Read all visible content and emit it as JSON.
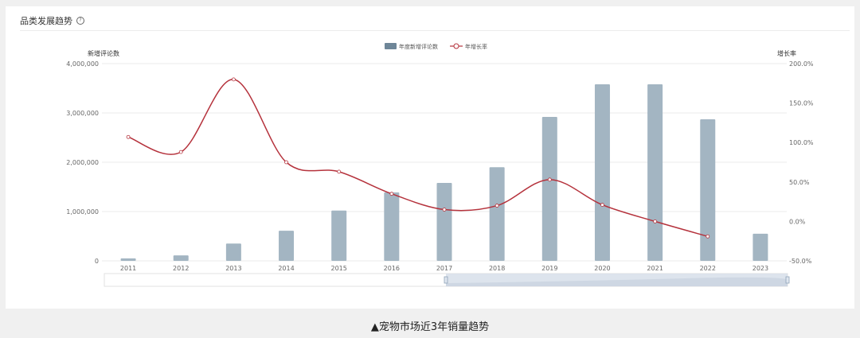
{
  "card": {
    "title": "品类发展趋势",
    "help_icon": "question-circle-icon"
  },
  "caption": "▲宠物市场近3年销量趋势",
  "colors": {
    "bar": "#a3b5c2",
    "line": "#b5323c",
    "grid": "#ebebeb",
    "axis_text": "#666666",
    "datazoom_fill": "#d5dde9"
  },
  "chart_data": {
    "type": "bar",
    "title": "品类发展趋势",
    "categories": [
      "2011",
      "2012",
      "2013",
      "2014",
      "2015",
      "2016",
      "2017",
      "2018",
      "2019",
      "2020",
      "2021",
      "2022",
      "2023"
    ],
    "series": [
      {
        "name": "年度新增评论数",
        "type": "bar",
        "axis": "left",
        "values": [
          50000,
          110000,
          350000,
          610000,
          1020000,
          1390000,
          1580000,
          1900000,
          2920000,
          3580000,
          3580000,
          2870000,
          550000
        ]
      },
      {
        "name": "年增长率",
        "type": "line",
        "axis": "right",
        "unit": "%",
        "values": [
          107,
          88,
          180,
          75,
          63,
          35,
          15,
          20,
          53,
          21,
          0,
          -19,
          null
        ]
      }
    ],
    "y_left": {
      "label": "新增评论数",
      "ticks": [
        "0",
        "1,000,000",
        "2,000,000",
        "3,000,000",
        "4,000,000"
      ],
      "range": [
        0,
        4000000
      ]
    },
    "y_right": {
      "label": "增长率",
      "ticks": [
        "-50.0%",
        "0.0%",
        "50.0%",
        "100.0%",
        "150.0%",
        "200.0%"
      ],
      "range": [
        -50,
        200
      ]
    },
    "legend": {
      "position": "top-center",
      "entries": [
        "年度新增评论数",
        "年增长率"
      ]
    },
    "grid": true,
    "data_zoom": {
      "start_percent": 50,
      "end_percent": 100
    }
  }
}
